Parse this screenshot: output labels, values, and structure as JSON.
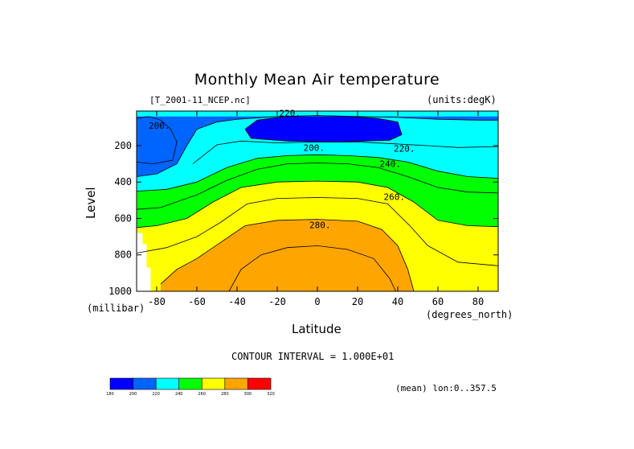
{
  "chart_data": {
    "type": "heatmap",
    "title": "Monthly Mean Air temperature",
    "file_label": "[T_2001-11_NCEP.nc]",
    "units_label": "(units:degK)",
    "xlabel": "Latitude",
    "ylabel": "Level",
    "x_units": "(degrees_north)",
    "y_units": "(millibar)",
    "contour_interval": "CONTOUR INTERVAL = 1.000E+01",
    "mean_note": "(mean) lon:0..357.5",
    "xlim": [
      -90,
      90
    ],
    "ylim": [
      1000,
      10
    ],
    "x_ticks": [
      -80,
      -60,
      -40,
      -20,
      0,
      20,
      40,
      60,
      80
    ],
    "y_ticks": [
      200,
      400,
      600,
      800,
      1000
    ],
    "levels": [
      180,
      200,
      220,
      240,
      260,
      280,
      300,
      320
    ],
    "level_colors": [
      "#0000ff",
      "#0064ff",
      "#00ffff",
      "#00ff00",
      "#ffff00",
      "#ffa500",
      "#ff0000"
    ],
    "colorbar_labels": [
      "180",
      "200",
      "220",
      "240",
      "260",
      "280",
      "300",
      "320"
    ],
    "contour_labels": [
      {
        "text": "220.",
        "lat": -19,
        "level": 20
      },
      {
        "text": "200.",
        "lat": -84,
        "level": 90
      },
      {
        "text": "200.",
        "lat": -7,
        "level": 210
      },
      {
        "text": "220.",
        "lat": 38,
        "level": 215
      },
      {
        "text": "240.",
        "lat": 31,
        "level": 300
      },
      {
        "text": "260.",
        "lat": 33,
        "level": 480
      },
      {
        "text": "280.",
        "lat": -4,
        "level": 635
      }
    ],
    "isotherms": [
      {
        "value": 200,
        "points": [
          [
            -90,
            50
          ],
          [
            -84,
            40
          ],
          [
            -78,
            60
          ],
          [
            -73,
            110
          ],
          [
            -70,
            180
          ],
          [
            -72,
            280
          ],
          [
            -82,
            300
          ],
          [
            -90,
            290
          ]
        ]
      },
      {
        "value": 200,
        "points": [
          [
            -36,
            110
          ],
          [
            -30,
            60
          ],
          [
            -16,
            40
          ],
          [
            0,
            35
          ],
          [
            16,
            40
          ],
          [
            30,
            50
          ],
          [
            40,
            70
          ],
          [
            42,
            140
          ],
          [
            36,
            170
          ],
          [
            10,
            180
          ],
          [
            -15,
            175
          ],
          [
            -33,
            160
          ],
          [
            -36,
            110
          ]
        ]
      },
      {
        "value": 220,
        "points": [
          [
            -90,
            370
          ],
          [
            -80,
            355
          ],
          [
            -70,
            300
          ],
          [
            -65,
            200
          ],
          [
            -60,
            110
          ],
          [
            -50,
            70
          ],
          [
            -40,
            55
          ],
          [
            -20,
            40
          ],
          [
            0,
            35
          ],
          [
            20,
            40
          ],
          [
            40,
            45
          ],
          [
            60,
            55
          ],
          [
            80,
            60
          ],
          [
            90,
            60
          ]
        ]
      },
      {
        "value": 220,
        "points": [
          [
            -62,
            300
          ],
          [
            -50,
            195
          ],
          [
            -38,
            175
          ],
          [
            -20,
            185
          ],
          [
            0,
            180
          ],
          [
            20,
            180
          ],
          [
            38,
            190
          ],
          [
            55,
            200
          ],
          [
            70,
            210
          ],
          [
            90,
            205
          ]
        ]
      },
      {
        "value": 240,
        "points": [
          [
            -90,
            450
          ],
          [
            -75,
            440
          ],
          [
            -60,
            400
          ],
          [
            -45,
            320
          ],
          [
            -30,
            270
          ],
          [
            -15,
            255
          ],
          [
            0,
            250
          ],
          [
            15,
            255
          ],
          [
            30,
            265
          ],
          [
            45,
            290
          ],
          [
            60,
            340
          ],
          [
            75,
            370
          ],
          [
            90,
            380
          ]
        ]
      },
      {
        "value": 250,
        "points": [
          [
            -90,
            550
          ],
          [
            -78,
            540
          ],
          [
            -60,
            470
          ],
          [
            -45,
            390
          ],
          [
            -30,
            330
          ],
          [
            -15,
            300
          ],
          [
            0,
            295
          ],
          [
            15,
            300
          ],
          [
            30,
            320
          ],
          [
            45,
            370
          ],
          [
            60,
            430
          ],
          [
            75,
            455
          ],
          [
            90,
            460
          ]
        ]
      },
      {
        "value": 260,
        "points": [
          [
            -90,
            650
          ],
          [
            -80,
            640
          ],
          [
            -65,
            600
          ],
          [
            -52,
            510
          ],
          [
            -38,
            430
          ],
          [
            -20,
            400
          ],
          [
            0,
            395
          ],
          [
            20,
            400
          ],
          [
            35,
            430
          ],
          [
            48,
            510
          ],
          [
            60,
            610
          ],
          [
            75,
            640
          ],
          [
            90,
            645
          ]
        ]
      },
      {
        "value": 270,
        "points": [
          [
            -90,
            790
          ],
          [
            -75,
            760
          ],
          [
            -60,
            700
          ],
          [
            -48,
            620
          ],
          [
            -35,
            520
          ],
          [
            -20,
            490
          ],
          [
            0,
            485
          ],
          [
            20,
            490
          ],
          [
            35,
            520
          ],
          [
            46,
            640
          ],
          [
            55,
            750
          ],
          [
            70,
            840
          ],
          [
            90,
            860
          ]
        ]
      },
      {
        "value": 280,
        "points": [
          [
            -78,
            960
          ],
          [
            -70,
            880
          ],
          [
            -60,
            820
          ],
          [
            -48,
            730
          ],
          [
            -36,
            640
          ],
          [
            -20,
            610
          ],
          [
            0,
            605
          ],
          [
            20,
            615
          ],
          [
            32,
            660
          ],
          [
            40,
            750
          ],
          [
            45,
            880
          ],
          [
            48,
            1000
          ]
        ]
      },
      {
        "value": 290,
        "points": [
          [
            -44,
            1000
          ],
          [
            -38,
            880
          ],
          [
            -28,
            800
          ],
          [
            -15,
            760
          ],
          [
            0,
            750
          ],
          [
            15,
            770
          ],
          [
            28,
            820
          ],
          [
            36,
            930
          ],
          [
            39,
            1000
          ]
        ]
      }
    ]
  }
}
